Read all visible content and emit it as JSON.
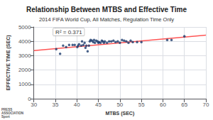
{
  "chart_data": {
    "type": "scatter",
    "title": "Relationship Between MTBS and Effective Time",
    "subtitle": "2014 FIFA World Cup, All Matches, Regulation Time Only",
    "xlabel": "MTBS (SEC)",
    "ylabel": "EFFECTIVE TIME (SEC)",
    "xlim": [
      30,
      70
    ],
    "ylim": [
      0,
      5000
    ],
    "xticks": [
      30,
      35,
      40,
      45,
      50,
      55,
      60,
      65,
      70
    ],
    "yticks": [
      0,
      1000,
      2000,
      3000,
      4000,
      5000
    ],
    "grid": true,
    "annotations": [
      "R² = 0.371",
      "PRESS\nASSOCIATION\nSport"
    ],
    "series": [
      {
        "type": "scatter",
        "color": "#1a3a6b",
        "x": [
          35.2,
          36.1,
          36.8,
          37.5,
          38.2,
          39.0,
          39.5,
          40.1,
          40.3,
          40.5,
          41.0,
          41.2,
          41.5,
          41.8,
          42.0,
          42.2,
          42.5,
          42.8,
          43.0,
          43.2,
          43.5,
          43.8,
          44.0,
          44.2,
          44.5,
          44.8,
          45.0,
          45.2,
          45.5,
          45.8,
          46.0,
          46.3,
          46.5,
          47.0,
          47.5,
          48.0,
          48.5,
          49.0,
          49.5,
          50.0,
          50.5,
          51.0,
          51.5,
          52.0,
          52.5,
          53.0,
          54.0,
          55.0,
          61.0,
          62.0,
          65.0
        ],
        "values": [
          3450,
          3130,
          3700,
          3600,
          3750,
          3750,
          3750,
          3600,
          3700,
          3800,
          3700,
          4000,
          3750,
          3900,
          3550,
          3700,
          3300,
          3700,
          4000,
          4100,
          4050,
          3950,
          4100,
          3900,
          4050,
          4000,
          3900,
          3950,
          3900,
          4050,
          4000,
          3900,
          4000,
          3900,
          4000,
          4000,
          4050,
          3950,
          4000,
          3900,
          4100,
          4050,
          4000,
          3900,
          4050,
          3950,
          3950,
          3950,
          4100,
          4100,
          4350
        ]
      },
      {
        "type": "line",
        "color": "#ff5555",
        "x": [
          30,
          70
        ],
        "values": [
          3350,
          4430
        ]
      }
    ]
  }
}
